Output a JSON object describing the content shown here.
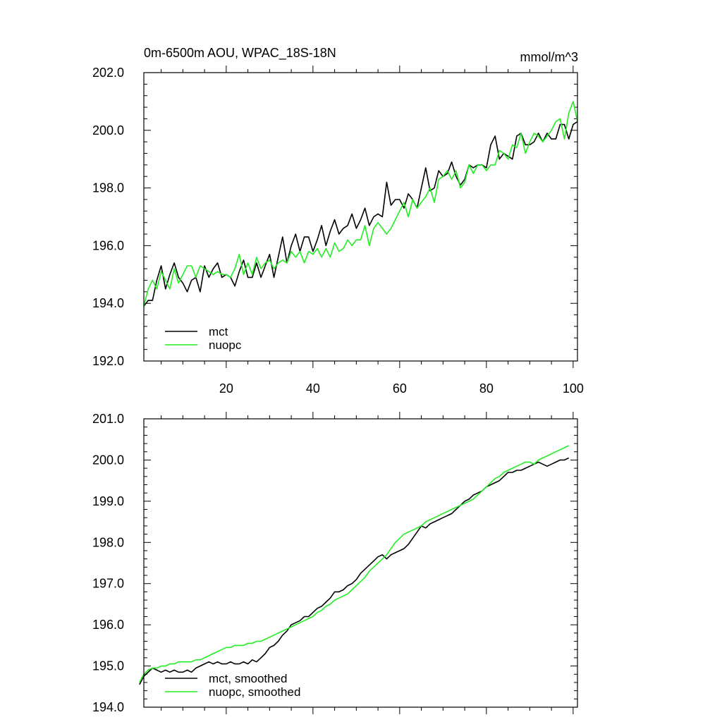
{
  "chart_data": [
    {
      "type": "line",
      "title": "0m-6500m AOU, WPAC_18S-18N",
      "units": "mmol/m^3",
      "xlabel": "",
      "ylabel": "",
      "xlim": [
        1,
        101
      ],
      "ylim": [
        192.0,
        202.0
      ],
      "xticks": [
        20,
        40,
        60,
        80,
        100
      ],
      "xtick_labels": [
        "20",
        "40",
        "60",
        "80",
        "100"
      ],
      "yticks": [
        192,
        194,
        196,
        198,
        200,
        202
      ],
      "ytick_labels": [
        "192.0",
        "194.0",
        "196.0",
        "198.0",
        "200.0",
        "202.0"
      ],
      "legend_position": "bottom-left",
      "series": [
        {
          "name": "mct",
          "color": "#000000",
          "x": [
            1,
            2,
            3,
            4,
            5,
            6,
            7,
            8,
            9,
            10,
            11,
            12,
            13,
            14,
            15,
            16,
            17,
            18,
            19,
            20,
            21,
            22,
            23,
            24,
            25,
            26,
            27,
            28,
            29,
            30,
            31,
            32,
            33,
            34,
            35,
            36,
            37,
            38,
            39,
            40,
            41,
            42,
            43,
            44,
            45,
            46,
            47,
            48,
            49,
            50,
            51,
            52,
            53,
            54,
            55,
            56,
            57,
            58,
            59,
            60,
            61,
            62,
            63,
            64,
            65,
            66,
            67,
            68,
            69,
            70,
            71,
            72,
            73,
            74,
            75,
            76,
            77,
            78,
            79,
            80,
            81,
            82,
            83,
            84,
            85,
            86,
            87,
            88,
            89,
            90,
            91,
            92,
            93,
            94,
            95,
            96,
            97,
            98,
            99,
            100,
            101
          ],
          "values": [
            193.9,
            194.1,
            194.1,
            194.8,
            195.3,
            194.5,
            195.0,
            195.4,
            194.9,
            194.7,
            194.4,
            194.8,
            194.9,
            194.4,
            195.3,
            194.9,
            195.2,
            195.4,
            194.9,
            195.0,
            194.9,
            194.6,
            195.1,
            195.5,
            194.9,
            194.9,
            195.4,
            194.9,
            195.3,
            195.7,
            194.9,
            195.6,
            196.3,
            195.4,
            196.0,
            196.4,
            195.8,
            196.3,
            196.3,
            195.8,
            196.2,
            196.7,
            196.0,
            196.5,
            196.9,
            196.4,
            196.6,
            196.7,
            197.1,
            196.6,
            196.9,
            197.3,
            196.7,
            197.0,
            197.1,
            197.0,
            198.2,
            197.4,
            197.6,
            197.6,
            197.3,
            197.8,
            197.6,
            197.3,
            198.0,
            198.7,
            197.9,
            198.0,
            198.6,
            198.4,
            198.5,
            198.9,
            198.4,
            198.1,
            198.3,
            198.8,
            198.7,
            198.8,
            198.8,
            198.7,
            199.5,
            199.8,
            199.0,
            199.2,
            199.1,
            199.0,
            199.8,
            199.9,
            199.5,
            199.5,
            199.6,
            199.9,
            199.6,
            199.9,
            199.7,
            199.7,
            200.2,
            200.2,
            199.7,
            200.2,
            200.3
          ]
        },
        {
          "name": "nuopc",
          "color": "#22ee22",
          "x": [
            1,
            2,
            3,
            4,
            5,
            6,
            7,
            8,
            9,
            10,
            11,
            12,
            13,
            14,
            15,
            16,
            17,
            18,
            19,
            20,
            21,
            22,
            23,
            24,
            25,
            26,
            27,
            28,
            29,
            30,
            31,
            32,
            33,
            34,
            35,
            36,
            37,
            38,
            39,
            40,
            41,
            42,
            43,
            44,
            45,
            46,
            47,
            48,
            49,
            50,
            51,
            52,
            53,
            54,
            55,
            56,
            57,
            58,
            59,
            60,
            61,
            62,
            63,
            64,
            65,
            66,
            67,
            68,
            69,
            70,
            71,
            72,
            73,
            74,
            75,
            76,
            77,
            78,
            79,
            80,
            81,
            82,
            83,
            84,
            85,
            86,
            87,
            88,
            89,
            90,
            91,
            92,
            93,
            94,
            95,
            96,
            97,
            98,
            99,
            100,
            101
          ],
          "values": [
            193.9,
            194.5,
            194.8,
            194.5,
            195.1,
            194.8,
            194.5,
            195.2,
            194.7,
            195.0,
            195.3,
            195.3,
            194.9,
            195.3,
            195.2,
            195.1,
            195.0,
            195.1,
            195.0,
            195.0,
            194.9,
            195.2,
            195.7,
            195.0,
            195.4,
            195.0,
            195.6,
            195.2,
            195.4,
            195.5,
            195.2,
            195.4,
            195.5,
            195.4,
            195.8,
            195.6,
            195.8,
            195.4,
            195.8,
            195.7,
            195.9,
            195.6,
            195.9,
            195.6,
            196.1,
            195.8,
            195.9,
            196.2,
            196.0,
            196.2,
            196.2,
            196.7,
            196.0,
            196.6,
            196.8,
            196.6,
            196.4,
            196.6,
            196.9,
            197.2,
            197.5,
            197.0,
            197.6,
            197.3,
            197.5,
            197.7,
            198.0,
            197.5,
            198.3,
            198.4,
            198.6,
            198.3,
            198.6,
            198.0,
            198.2,
            198.8,
            198.5,
            198.8,
            198.8,
            198.6,
            198.8,
            198.8,
            199.3,
            199.2,
            199.0,
            199.5,
            199.4,
            199.9,
            199.2,
            199.6,
            199.9,
            199.8,
            199.6,
            199.8,
            200.0,
            200.3,
            200.4,
            199.7,
            200.6,
            201.0,
            200.3
          ]
        }
      ]
    },
    {
      "type": "line",
      "title": "",
      "xlabel": "",
      "ylabel": "",
      "xlim": [
        1,
        101
      ],
      "ylim": [
        194.0,
        201.0
      ],
      "xticks": [
        20,
        40,
        60,
        80,
        100
      ],
      "xtick_labels": [],
      "yticks": [
        194,
        195,
        196,
        197,
        198,
        199,
        200,
        201
      ],
      "ytick_labels": [
        "194.0",
        "195.0",
        "196.0",
        "197.0",
        "198.0",
        "199.0",
        "200.0",
        "201.0"
      ],
      "legend_position": "bottom-left",
      "series": [
        {
          "name": "mct, smoothed",
          "color": "#000000",
          "x": [
            0,
            1,
            2,
            3,
            4,
            5,
            6,
            7,
            8,
            9,
            10,
            11,
            12,
            13,
            14,
            15,
            16,
            17,
            18,
            19,
            20,
            21,
            22,
            23,
            24,
            25,
            26,
            27,
            28,
            29,
            30,
            31,
            32,
            33,
            34,
            35,
            36,
            37,
            38,
            39,
            40,
            41,
            42,
            43,
            44,
            45,
            46,
            47,
            48,
            49,
            50,
            51,
            52,
            53,
            54,
            55,
            56,
            57,
            58,
            59,
            60,
            61,
            62,
            63,
            64,
            65,
            66,
            67,
            68,
            69,
            70,
            71,
            72,
            73,
            74,
            75,
            76,
            77,
            78,
            79,
            80,
            81,
            82,
            83,
            84,
            85,
            86,
            87,
            88,
            89,
            90,
            91,
            92,
            93,
            94,
            95,
            96,
            97,
            98,
            99
          ],
          "values": [
            194.55,
            194.75,
            194.85,
            194.95,
            194.9,
            194.85,
            194.9,
            194.85,
            194.9,
            194.85,
            194.85,
            194.9,
            194.85,
            194.95,
            195.0,
            195.05,
            195.1,
            195.05,
            195.1,
            195.05,
            195.05,
            195.1,
            195.05,
            195.05,
            195.1,
            195.05,
            195.15,
            195.1,
            195.2,
            195.3,
            195.45,
            195.5,
            195.6,
            195.75,
            195.85,
            196.0,
            196.05,
            196.1,
            196.2,
            196.2,
            196.3,
            196.4,
            196.45,
            196.55,
            196.65,
            196.8,
            196.8,
            196.85,
            196.95,
            197.0,
            197.1,
            197.25,
            197.35,
            197.45,
            197.55,
            197.65,
            197.7,
            197.6,
            197.7,
            197.75,
            197.8,
            197.85,
            197.95,
            198.1,
            198.25,
            198.4,
            198.35,
            198.45,
            198.5,
            198.55,
            198.6,
            198.65,
            198.7,
            198.8,
            198.9,
            199.0,
            199.05,
            199.15,
            199.2,
            199.25,
            199.35,
            199.4,
            199.45,
            199.5,
            199.6,
            199.7,
            199.7,
            199.75,
            199.75,
            199.8,
            199.85,
            199.9,
            199.95,
            199.9,
            199.85,
            199.9,
            199.95,
            200.0,
            200.0,
            200.05
          ]
        },
        {
          "name": "nuopc, smoothed",
          "color": "#22ee22",
          "x": [
            0,
            1,
            2,
            3,
            4,
            5,
            6,
            7,
            8,
            9,
            10,
            11,
            12,
            13,
            14,
            15,
            16,
            17,
            18,
            19,
            20,
            21,
            22,
            23,
            24,
            25,
            26,
            27,
            28,
            29,
            30,
            31,
            32,
            33,
            34,
            35,
            36,
            37,
            38,
            39,
            40,
            41,
            42,
            43,
            44,
            45,
            46,
            47,
            48,
            49,
            50,
            51,
            52,
            53,
            54,
            55,
            56,
            57,
            58,
            59,
            60,
            61,
            62,
            63,
            64,
            65,
            66,
            67,
            68,
            69,
            70,
            71,
            72,
            73,
            74,
            75,
            76,
            77,
            78,
            79,
            80,
            81,
            82,
            83,
            84,
            85,
            86,
            87,
            88,
            89,
            90,
            91,
            92,
            93,
            94,
            95,
            96,
            97,
            98,
            99
          ],
          "values": [
            194.6,
            194.8,
            194.9,
            194.95,
            194.95,
            195.0,
            195.0,
            195.05,
            195.05,
            195.1,
            195.1,
            195.1,
            195.1,
            195.15,
            195.15,
            195.2,
            195.25,
            195.3,
            195.35,
            195.4,
            195.45,
            195.45,
            195.5,
            195.5,
            195.5,
            195.55,
            195.55,
            195.6,
            195.6,
            195.65,
            195.7,
            195.75,
            195.8,
            195.85,
            195.9,
            195.95,
            196.0,
            196.05,
            196.1,
            196.15,
            196.2,
            196.3,
            196.35,
            196.45,
            196.5,
            196.6,
            196.65,
            196.7,
            196.75,
            196.85,
            196.95,
            197.05,
            197.15,
            197.3,
            197.4,
            197.5,
            197.6,
            197.7,
            197.85,
            198.0,
            198.1,
            198.2,
            198.25,
            198.3,
            198.35,
            198.4,
            198.5,
            198.55,
            198.6,
            198.65,
            198.7,
            198.75,
            198.8,
            198.85,
            198.9,
            198.95,
            199.0,
            199.05,
            199.15,
            199.25,
            199.35,
            199.45,
            199.55,
            199.6,
            199.7,
            199.75,
            199.8,
            199.85,
            199.9,
            199.95,
            199.95,
            199.9,
            200.0,
            200.05,
            200.1,
            200.15,
            200.2,
            200.25,
            200.3,
            200.35
          ]
        }
      ]
    }
  ]
}
